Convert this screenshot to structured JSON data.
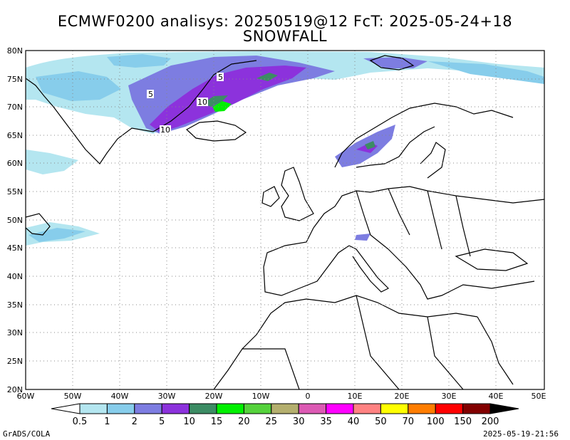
{
  "title": {
    "line1": "ECMWF0200 analisys: 20250519@12 FcT: 2025-05-24+18",
    "line2": "SNOWFALL"
  },
  "map": {
    "lat_labels": [
      "80N",
      "75N",
      "70N",
      "65N",
      "60N",
      "55N",
      "50N",
      "45N",
      "40N",
      "35N",
      "30N",
      "25N",
      "20N"
    ],
    "lon_labels": [
      "60W",
      "50W",
      "40W",
      "30W",
      "20W",
      "10W",
      "0",
      "10E",
      "20E",
      "30E",
      "40E",
      "50E"
    ],
    "lat_range": [
      20,
      80
    ],
    "lon_range": [
      -60,
      50
    ],
    "gridlines": "dotted",
    "contour_labels": [
      "5",
      "5",
      "10",
      "10"
    ]
  },
  "legend": {
    "values": [
      "0.5",
      "1",
      "2",
      "5",
      "10",
      "15",
      "20",
      "25",
      "30",
      "35",
      "40",
      "50",
      "70",
      "100",
      "150",
      "200"
    ],
    "colors": [
      "#b4e6f0",
      "#87cdeb",
      "#7d7de1",
      "#8c32dc",
      "#3c8c64",
      "#00f000",
      "#55d23c",
      "#b4af6e",
      "#dc5ab4",
      "#ff00ff",
      "#ff8282",
      "#ffff00",
      "#ff7d00",
      "#ff0000",
      "#820000"
    ],
    "under_color": "#ffffff",
    "over_color": "#000000"
  },
  "footer": {
    "credit": "GrADS/COLA",
    "timestamp": "2025-05-19-21:56"
  }
}
